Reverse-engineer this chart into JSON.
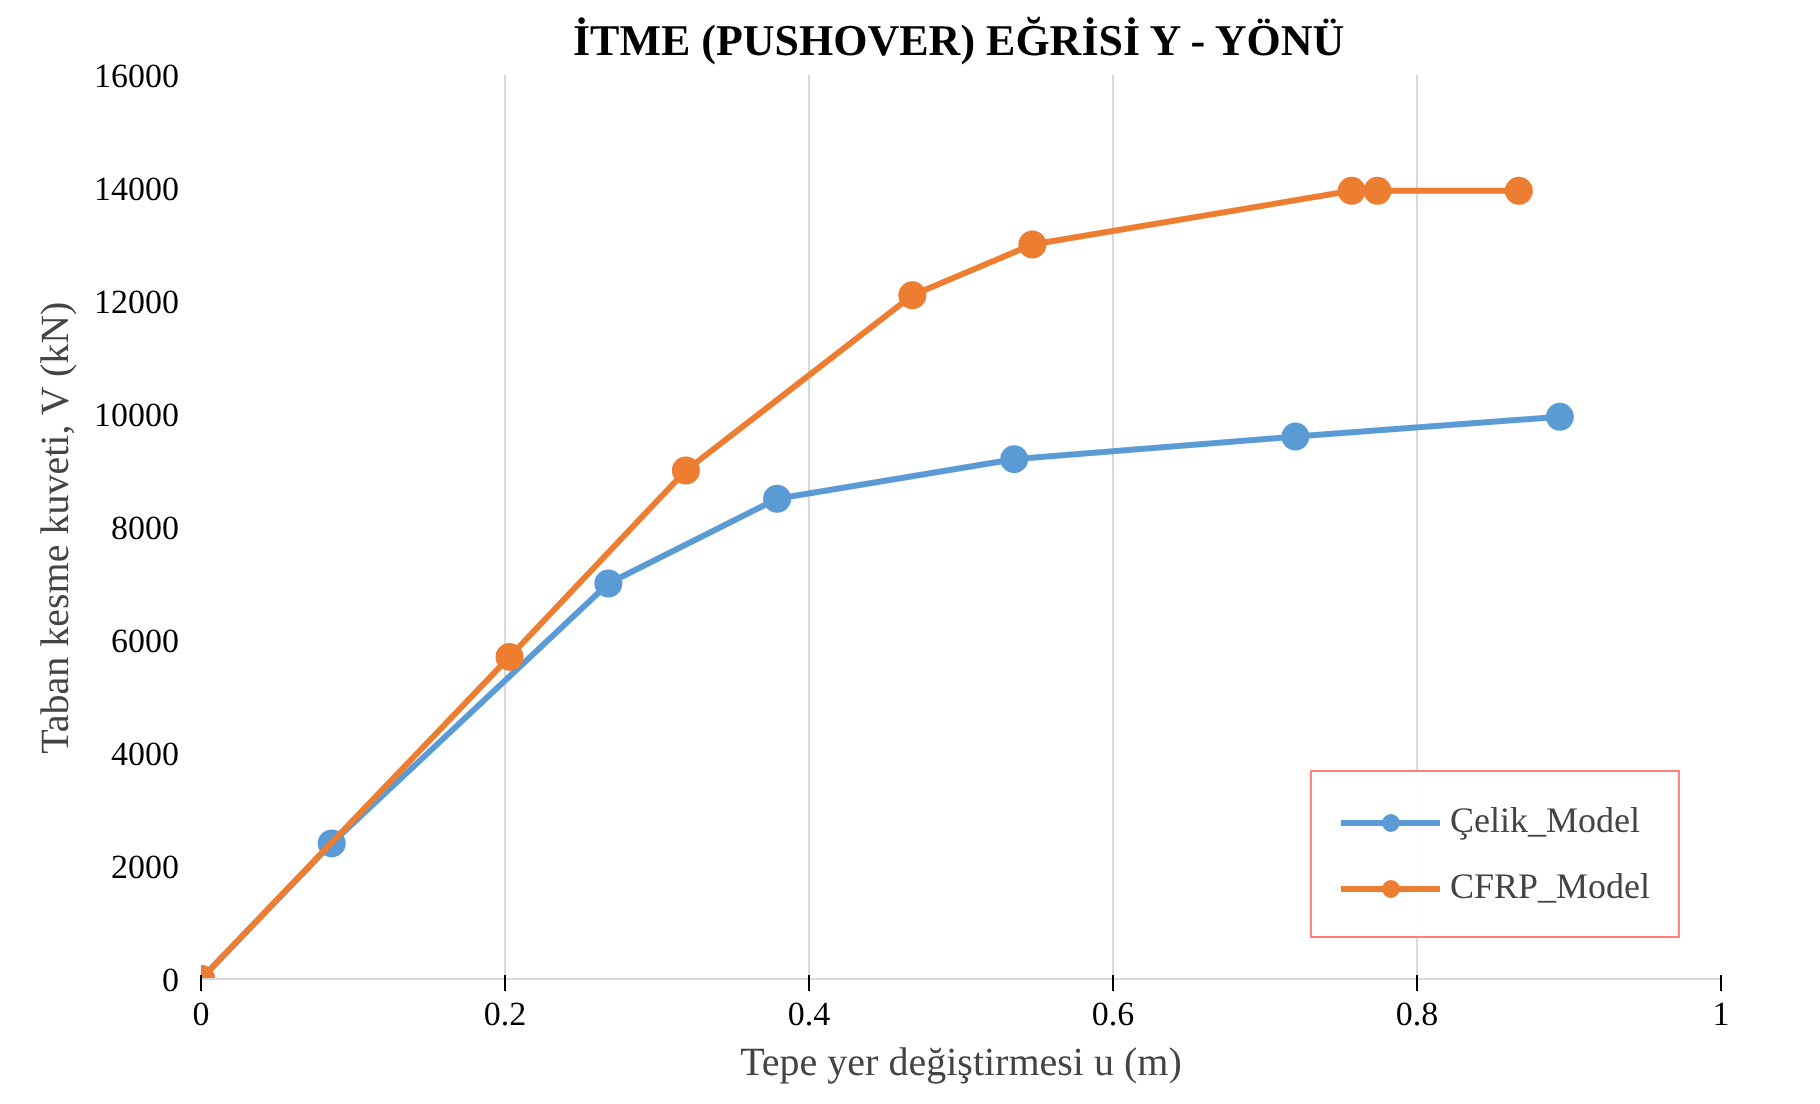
{
  "chart_data": {
    "type": "line",
    "title": "İTME (PUSHOVER) EĞRİSİ Y - YÖNÜ",
    "xlabel": "Tepe yer değiştirmesi u (m)",
    "ylabel": "Taban kesme kuveti, V (kN)",
    "series": [
      {
        "name": "Çelik_Model",
        "color": "#5b9bd5",
        "x": [
          0,
          0.086,
          0.203,
          0.268,
          0.379,
          0.535,
          0.72,
          0.894
        ],
        "values": [
          0,
          2400,
          null,
          7000,
          8500,
          9200,
          9600,
          9950
        ]
      },
      {
        "name": "CFRP_Model",
        "color": "#ed7d31",
        "x": [
          0,
          0.203,
          0.319,
          0.468,
          0.547,
          0.757,
          0.774,
          0.867
        ],
        "values": [
          0,
          5700,
          9000,
          12100,
          13000,
          13950,
          13950,
          13950
        ]
      }
    ],
    "xlim": [
      0,
      1
    ],
    "xticks": [
      0,
      0.2,
      0.4,
      0.6,
      0.8,
      1
    ],
    "ylim": [
      0,
      16000
    ],
    "yticks": [
      0,
      2000,
      4000,
      6000,
      8000,
      10000,
      12000,
      14000,
      16000
    ],
    "grid": "x",
    "legend": "bottom right",
    "marker": "circle",
    "line_style": "solid"
  }
}
